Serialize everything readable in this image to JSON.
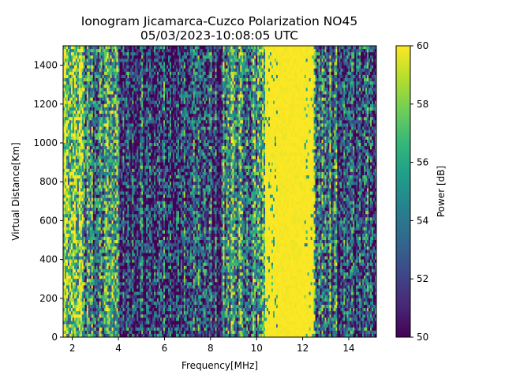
{
  "chart_data": {
    "type": "heatmap",
    "title": "Ionogram Jicamarca-Cuzco Polarization NO45",
    "subtitle": "05/03/2023-10:08:05 UTC",
    "xlabel": "Frequency[MHz]",
    "ylabel": "Virtual Distance[Km]",
    "xlim": [
      1.6,
      15.2
    ],
    "ylim": [
      0,
      1500
    ],
    "xticks": [
      2,
      4,
      6,
      8,
      10,
      12,
      14
    ],
    "yticks": [
      0,
      200,
      400,
      600,
      800,
      1000,
      1200,
      1400
    ],
    "colorbar": {
      "label": "Power [dB]",
      "range": [
        50,
        60
      ],
      "ticks": [
        50,
        52,
        54,
        56,
        58,
        60
      ],
      "colormap": "viridis"
    },
    "power_profile_by_frequency": {
      "description_bands": [
        {
          "from": 1.6,
          "to": 2.5,
          "level": "high"
        },
        {
          "from": 2.5,
          "to": 4.0,
          "level": "mixed"
        },
        {
          "from": 4.0,
          "to": 8.5,
          "level": "low"
        },
        {
          "from": 8.5,
          "to": 10.4,
          "level": "mixed"
        },
        {
          "from": 10.4,
          "to": 12.5,
          "level": "saturated"
        },
        {
          "from": 12.5,
          "to": 13.5,
          "level": "mixed"
        },
        {
          "from": 13.5,
          "to": 15.2,
          "level": "low"
        }
      ]
    },
    "grid": false
  }
}
